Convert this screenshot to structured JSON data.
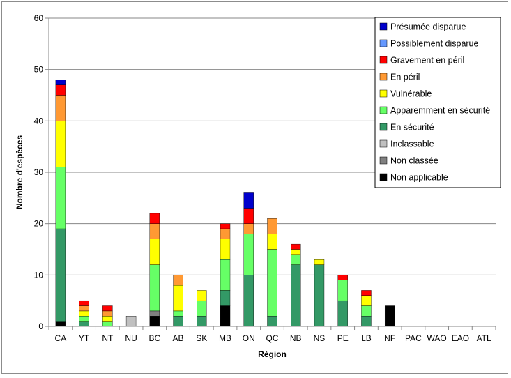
{
  "chart_data": {
    "type": "bar",
    "stacked": true,
    "title": "",
    "xlabel": "Région",
    "ylabel": "Nombre d'espèces",
    "ylim": [
      0,
      60
    ],
    "yticks": [
      0,
      10,
      20,
      30,
      40,
      50,
      60
    ],
    "grid": true,
    "legend_position": "top-right",
    "categories": [
      "CA",
      "YT",
      "NT",
      "NU",
      "BC",
      "AB",
      "SK",
      "MB",
      "ON",
      "QC",
      "NB",
      "NS",
      "PE",
      "LB",
      "NF",
      "PAC",
      "WAO",
      "EAO",
      "ATL"
    ],
    "series": [
      {
        "name": "Non applicable",
        "color": "#000000",
        "values": [
          1,
          0,
          0,
          0,
          2,
          0,
          0,
          4,
          0,
          0,
          0,
          0,
          0,
          0,
          4,
          0,
          0,
          0,
          0
        ]
      },
      {
        "name": "Non classée",
        "color": "#808080",
        "values": [
          0,
          0,
          0,
          0,
          1,
          0,
          0,
          0,
          0,
          0,
          0,
          0,
          0,
          0,
          0,
          0,
          0,
          0,
          0
        ]
      },
      {
        "name": "Inclassable",
        "color": "#c0c0c0",
        "values": [
          0,
          0,
          0,
          2,
          0,
          0,
          0,
          0,
          0,
          0,
          0,
          0,
          0,
          0,
          0,
          0,
          0,
          0,
          0
        ]
      },
      {
        "name": "En sécurité",
        "color": "#339966",
        "values": [
          18,
          1,
          0,
          0,
          0,
          2,
          2,
          3,
          10,
          2,
          12,
          12,
          5,
          2,
          0,
          0,
          0,
          0,
          0
        ]
      },
      {
        "name": "Apparemment en sécurité",
        "color": "#66ff66",
        "values": [
          12,
          1,
          1,
          0,
          9,
          1,
          3,
          6,
          8,
          13,
          2,
          0,
          4,
          2,
          0,
          0,
          0,
          0,
          0
        ]
      },
      {
        "name": "Vulnérable",
        "color": "#ffff00",
        "values": [
          9,
          1,
          1,
          0,
          5,
          5,
          2,
          4,
          0,
          3,
          1,
          1,
          0,
          2,
          0,
          0,
          0,
          0,
          0
        ]
      },
      {
        "name": "En péril",
        "color": "#ff9933",
        "values": [
          5,
          1,
          1,
          0,
          3,
          2,
          0,
          2,
          2,
          3,
          0,
          0,
          0,
          0,
          0,
          0,
          0,
          0,
          0
        ]
      },
      {
        "name": "Gravement en péril",
        "color": "#ff0000",
        "values": [
          2,
          1,
          1,
          0,
          2,
          0,
          0,
          1,
          3,
          0,
          1,
          0,
          1,
          1,
          0,
          0,
          0,
          0,
          0
        ]
      },
      {
        "name": "Possiblement disparue",
        "color": "#6699ff",
        "values": [
          0,
          0,
          0,
          0,
          0,
          0,
          0,
          0,
          0,
          0,
          0,
          0,
          0,
          0,
          0,
          0,
          0,
          0,
          0
        ]
      },
      {
        "name": "Présumée disparue",
        "color": "#0000cc",
        "values": [
          1,
          0,
          0,
          0,
          0,
          0,
          0,
          0,
          3,
          0,
          0,
          0,
          0,
          0,
          0,
          0,
          0,
          0,
          0
        ]
      }
    ]
  }
}
